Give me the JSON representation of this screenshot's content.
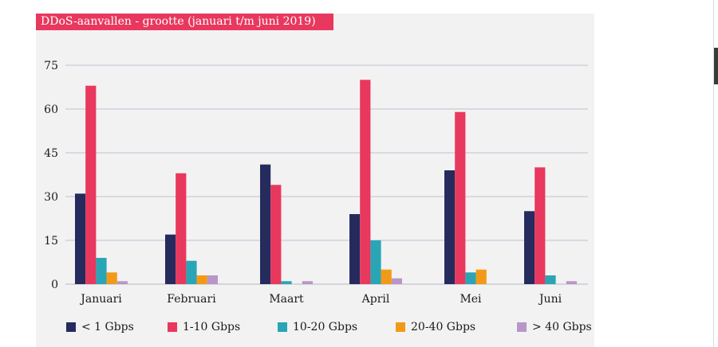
{
  "chart_data": {
    "type": "bar",
    "title": "DDoS-aanvallen - grootte (januari t/m juni 2019)",
    "categories": [
      "Januari",
      "Februari",
      "Maart",
      "April",
      "Mei",
      "Juni"
    ],
    "series": [
      {
        "name": "< 1 Gbps",
        "color": "#262b5e",
        "values": [
          31,
          17,
          41,
          24,
          39,
          25
        ]
      },
      {
        "name": "1-10 Gbps",
        "color": "#e8385e",
        "values": [
          68,
          38,
          34,
          70,
          59,
          40
        ]
      },
      {
        "name": "10-20 Gbps",
        "color": "#2aa5b5",
        "values": [
          9,
          8,
          1,
          15,
          4,
          3
        ]
      },
      {
        "name": "20-40 Gbps",
        "color": "#f29a18",
        "values": [
          4,
          3,
          0,
          5,
          5,
          0
        ]
      },
      {
        "name": "> 40 Gbps",
        "color": "#b896c8",
        "values": [
          1,
          3,
          1,
          2,
          0,
          1
        ]
      }
    ],
    "yticks": [
      0,
      15,
      30,
      45,
      60,
      75
    ],
    "ylim": [
      0,
      75
    ],
    "grid": true,
    "legend_position": "bottom"
  }
}
